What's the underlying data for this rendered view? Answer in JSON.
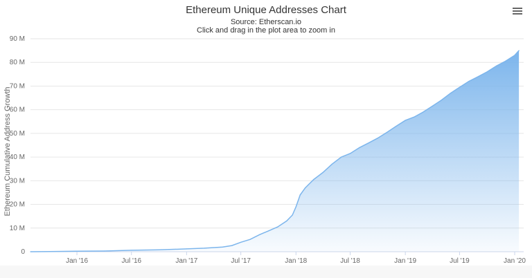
{
  "header": {
    "title": "Ethereum Unique Addresses Chart",
    "source": "Source: Etherscan.io",
    "hint": "Click and drag in the plot area to zoom in"
  },
  "chart_data": {
    "type": "area",
    "title": "Ethereum Unique Addresses Chart",
    "subtitle": "Source: Etherscan.io",
    "xlabel": "",
    "ylabel": "Ethereum Cumulative Address Growth",
    "ylim": [
      0,
      90000000
    ],
    "yticks": [
      "0",
      "10 M",
      "20 M",
      "30 M",
      "40 M",
      "50 M",
      "60 M",
      "70 M",
      "80 M",
      "90 M"
    ],
    "xticks": [
      "Jan '16",
      "Jul '16",
      "Jan '17",
      "Jul '17",
      "Jan '18",
      "Jul '18",
      "Jan '19",
      "Jul '19",
      "Jan '20"
    ],
    "grid": true,
    "legend": "none",
    "color": "#7cb5ec",
    "x": [
      "2015-07-30",
      "2015-10-01",
      "2016-01-01",
      "2016-04-01",
      "2016-07-01",
      "2016-10-01",
      "2017-01-01",
      "2017-03-01",
      "2017-05-01",
      "2017-06-01",
      "2017-07-01",
      "2017-08-01",
      "2017-09-01",
      "2017-10-01",
      "2017-11-01",
      "2017-12-01",
      "2017-12-20",
      "2018-01-01",
      "2018-01-15",
      "2018-02-01",
      "2018-03-01",
      "2018-04-01",
      "2018-05-01",
      "2018-06-01",
      "2018-07-01",
      "2018-08-01",
      "2018-09-01",
      "2018-10-01",
      "2018-11-01",
      "2018-12-01",
      "2019-01-01",
      "2019-02-01",
      "2019-03-01",
      "2019-04-01",
      "2019-05-01",
      "2019-06-01",
      "2019-07-01",
      "2019-08-01",
      "2019-09-01",
      "2019-10-01",
      "2019-11-01",
      "2019-12-01",
      "2020-01-01",
      "2020-01-15"
    ],
    "values": [
      0,
      50000,
      200000,
      300000,
      600000,
      800000,
      1200000,
      1500000,
      2000000,
      2600000,
      4000000,
      5200000,
      7200000,
      8800000,
      10500000,
      13000000,
      15500000,
      19000000,
      24000000,
      27000000,
      30500000,
      33500000,
      37000000,
      40000000,
      41500000,
      44000000,
      46000000,
      48000000,
      50500000,
      53000000,
      55500000,
      57000000,
      59000000,
      61500000,
      64000000,
      67000000,
      69500000,
      72000000,
      74000000,
      76000000,
      78500000,
      80500000,
      83000000,
      85000000
    ]
  },
  "toolbar": {
    "menu_icon": "hamburger-icon"
  }
}
